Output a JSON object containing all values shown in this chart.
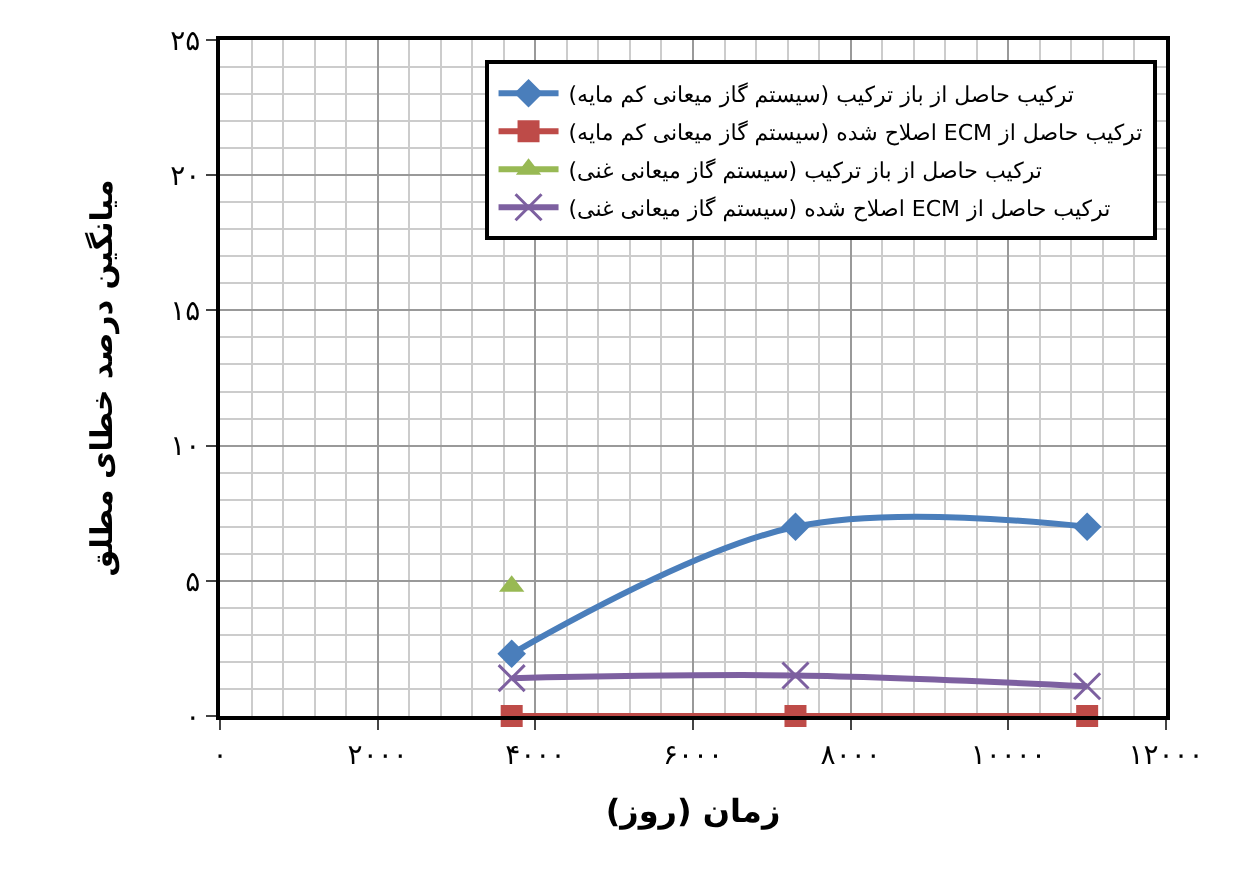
{
  "chart_data": {
    "type": "line",
    "xlabel": "زمان (روز)",
    "ylabel": "میانگین درصد خطای مطلق",
    "x": [
      3700,
      7300,
      11000
    ],
    "series": [
      {
        "name": "ترکیب حاصل از باز ترکیب (سیستم گاز میعانی کم مایه)",
        "color": "#4a7ebb",
        "marker": "diamond",
        "values": [
          2.3,
          7.0,
          7.0
        ]
      },
      {
        "name": "ترکیب حاصل از ECM اصلاح شده (سیستم گاز میعانی کم مایه)",
        "color": "#be4b48",
        "marker": "square",
        "values": [
          0,
          0,
          0
        ]
      },
      {
        "name": "ترکیب حاصل از باز ترکیب (سیستم گاز میعانی غنی)",
        "color": "#98b954",
        "marker": "triangle",
        "values": [
          4.8,
          null,
          null
        ]
      },
      {
        "name": "ترکیب حاصل از ECM اصلاح شده (سیستم گاز میعانی غنی)",
        "color": "#7d60a0",
        "marker": "cross",
        "values": [
          1.4,
          1.5,
          1.1
        ]
      }
    ],
    "xlim": [
      0,
      12000
    ],
    "xticks": [
      {
        "value": 0,
        "label": "۰"
      },
      {
        "value": 2000,
        "label": "۲۰۰۰"
      },
      {
        "value": 4000,
        "label": "۴۰۰۰"
      },
      {
        "value": 6000,
        "label": "۶۰۰۰"
      },
      {
        "value": 8000,
        "label": "۸۰۰۰"
      },
      {
        "value": 10000,
        "label": "۱۰۰۰۰"
      },
      {
        "value": 12000,
        "label": "۱۲۰۰۰"
      }
    ],
    "ylim": [
      0,
      25
    ],
    "yticks": [
      {
        "value": 0,
        "label": "۰"
      },
      {
        "value": 5,
        "label": "۵"
      },
      {
        "value": 10,
        "label": "۱۰"
      },
      {
        "value": 15,
        "label": "۱۵"
      },
      {
        "value": 20,
        "label": "۲۰"
      },
      {
        "value": 25,
        "label": "۲۵"
      }
    ],
    "grid": true,
    "legend": "top right",
    "line_style": "solid"
  }
}
